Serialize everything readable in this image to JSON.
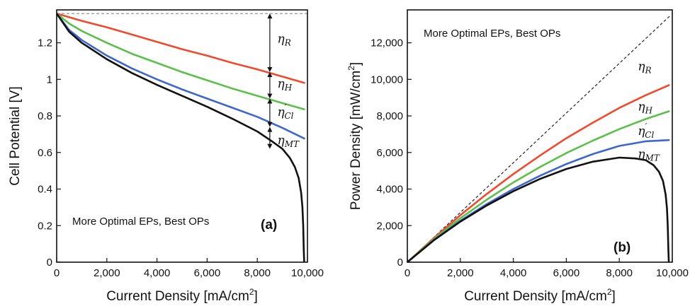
{
  "chart_data": [
    {
      "type": "line",
      "panel_label": "(a)",
      "annotation": "More Optimal EPs, Best OPs",
      "xlabel": "Current Density [mA/cm",
      "xlabel_sup": "2",
      "xlabel_end": "]",
      "ylabel": "Cell Potential [V]",
      "xlim": [
        0,
        10000
      ],
      "ylim": [
        0,
        1.38
      ],
      "xticks": [
        0,
        2000,
        4000,
        6000,
        8000,
        10000
      ],
      "xtick_labels": [
        "0",
        "2,000",
        "4,000",
        "6,000",
        "8,000",
        "10,000"
      ],
      "yticks": [
        0,
        0.2,
        0.4,
        0.6,
        0.8,
        1.0,
        1.2
      ],
      "ytick_labels": [
        "0",
        "0.2",
        "0.4",
        "0.6",
        "0.8",
        "1",
        "1.2"
      ],
      "grid": false,
      "series": [
        {
          "color": "#888888",
          "dash": "4,3",
          "x": [
            0,
            10000
          ],
          "y": [
            1.36,
            1.36
          ]
        },
        {
          "color": "#f04a2e",
          "x": [
            0,
            1000,
            2000,
            3000,
            4000,
            5000,
            6000,
            7000,
            8000,
            9000,
            9900
          ],
          "y": [
            1.36,
            1.32,
            1.285,
            1.245,
            1.205,
            1.165,
            1.13,
            1.09,
            1.055,
            1.015,
            0.98
          ]
        },
        {
          "color": "#5cbf4a",
          "x": [
            0,
            500,
            1000,
            2000,
            3000,
            4000,
            5000,
            6000,
            7000,
            8000,
            9000,
            9900
          ],
          "y": [
            1.36,
            1.305,
            1.265,
            1.2,
            1.14,
            1.09,
            1.04,
            0.995,
            0.95,
            0.91,
            0.87,
            0.835
          ]
        },
        {
          "color": "#3f66cc",
          "x": [
            0,
            500,
            1000,
            2000,
            3000,
            4000,
            5000,
            6000,
            7000,
            8000,
            9000,
            9900
          ],
          "y": [
            1.36,
            1.27,
            1.215,
            1.13,
            1.06,
            1.0,
            0.945,
            0.895,
            0.845,
            0.795,
            0.735,
            0.675
          ]
        },
        {
          "color": "#111111",
          "x": [
            0,
            500,
            1000,
            2000,
            3000,
            4000,
            5000,
            6000,
            7000,
            8000,
            8600,
            9000,
            9300,
            9500,
            9650,
            9750,
            9800,
            9830,
            9850,
            9870
          ],
          "y": [
            1.36,
            1.26,
            1.2,
            1.11,
            1.035,
            0.97,
            0.91,
            0.85,
            0.785,
            0.715,
            0.66,
            0.62,
            0.57,
            0.52,
            0.46,
            0.38,
            0.3,
            0.2,
            0.08,
            0.0
          ]
        }
      ],
      "arrows": [
        {
          "x": 8500,
          "y1": 1.36,
          "y2": 1.04
        },
        {
          "x": 8500,
          "y1": 1.04,
          "y2": 0.895
        },
        {
          "x": 8500,
          "y1": 0.895,
          "y2": 0.74
        },
        {
          "x": 8500,
          "y1": 0.74,
          "y2": 0.62
        }
      ],
      "labels": [
        {
          "base": "η",
          "sub": "R",
          "prime": false,
          "x": 8800,
          "y": 1.2
        },
        {
          "base": "η",
          "sub": "H",
          "prime": false,
          "x": 8800,
          "y": 0.955
        },
        {
          "base": "η",
          "sub": "Cl",
          "prime": true,
          "x": 8800,
          "y": 0.8
        },
        {
          "base": "η",
          "sub": "MT",
          "prime": false,
          "x": 8800,
          "y": 0.645
        }
      ]
    },
    {
      "type": "line",
      "panel_label": "(b)",
      "annotation": "More Optimal EPs, Best OPs",
      "xlabel": "Current Density [mA/cm",
      "xlabel_sup": "2",
      "xlabel_end": "]",
      "ylabel": "Power Density [mW/cm",
      "ylabel_sup": "2",
      "ylabel_end": "]",
      "xlim": [
        0,
        10000
      ],
      "ylim": [
        0,
        13800
      ],
      "xticks": [
        0,
        2000,
        4000,
        6000,
        8000,
        10000
      ],
      "xtick_labels": [
        "0",
        "2,000",
        "4,000",
        "6,000",
        "8,000",
        "10,000"
      ],
      "yticks": [
        0,
        2000,
        4000,
        6000,
        8000,
        10000,
        12000
      ],
      "ytick_labels": [
        "0",
        "2,000",
        "4,000",
        "6,000",
        "8,000",
        "10,000",
        "12,000"
      ],
      "grid": false,
      "series": [
        {
          "color": "#222222",
          "dash": "4,3",
          "x": [
            0,
            9900
          ],
          "y": [
            0,
            13460
          ]
        },
        {
          "color": "#f04a2e",
          "x": [
            0,
            1000,
            2000,
            3000,
            4000,
            5000,
            6000,
            7000,
            8000,
            9000,
            9900
          ],
          "y": [
            0,
            1320,
            2570,
            3735,
            4820,
            5825,
            6780,
            7630,
            8440,
            9135,
            9700
          ]
        },
        {
          "color": "#5cbf4a",
          "x": [
            0,
            1000,
            2000,
            3000,
            4000,
            5000,
            6000,
            7000,
            8000,
            9000,
            9900
          ],
          "y": [
            0,
            1265,
            2400,
            3420,
            4360,
            5200,
            5970,
            6650,
            7280,
            7830,
            8270
          ]
        },
        {
          "color": "#3f66cc",
          "x": [
            0,
            1000,
            2000,
            3000,
            4000,
            5000,
            6000,
            7000,
            8000,
            9000,
            9900
          ],
          "y": [
            0,
            1215,
            2260,
            3180,
            4000,
            4725,
            5370,
            5915,
            6360,
            6615,
            6680
          ]
        },
        {
          "color": "#111111",
          "x": [
            0,
            1000,
            2000,
            3000,
            4000,
            5000,
            6000,
            7000,
            8000,
            8600,
            9000,
            9300,
            9500,
            9650,
            9750,
            9800,
            9830,
            9850,
            9870
          ],
          "y": [
            0,
            1200,
            2220,
            3105,
            3880,
            4550,
            5100,
            5495,
            5720,
            5676,
            5580,
            5300,
            4940,
            4440,
            3700,
            2940,
            1970,
            790,
            0
          ]
        }
      ],
      "arrows": [],
      "labels": [
        {
          "base": "η",
          "sub": "R",
          "prime": false,
          "x": 8700,
          "y": 10500
        },
        {
          "base": "η",
          "sub": "H",
          "prime": false,
          "x": 8700,
          "y": 8300
        },
        {
          "base": "η",
          "sub": "Cl",
          "prime": true,
          "x": 8700,
          "y": 6950
        },
        {
          "base": "η",
          "sub": "MT",
          "prime": false,
          "x": 8700,
          "y": 5700
        }
      ]
    }
  ]
}
